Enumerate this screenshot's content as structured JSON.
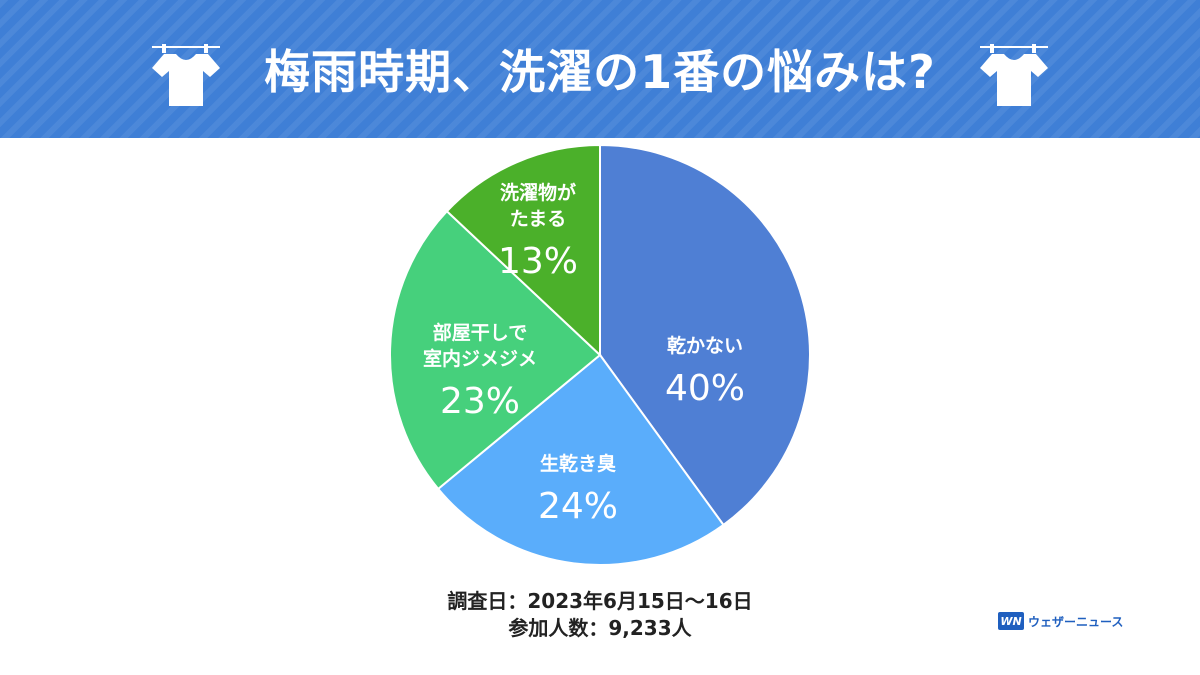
{
  "header": {
    "title": "梅雨時期、洗濯の1番の悩みは?"
  },
  "chart_data": {
    "type": "pie",
    "title": "梅雨時期、洗濯の1番の悩みは?",
    "slices": [
      {
        "lines": [
          "乾かない"
        ],
        "value": 40,
        "label": "40%",
        "color": "#4f7fd4"
      },
      {
        "lines": [
          "生乾き臭"
        ],
        "value": 24,
        "label": "24%",
        "color": "#5aadfb"
      },
      {
        "lines": [
          "部屋干しで",
          "室内ジメジメ"
        ],
        "value": 23,
        "label": "23%",
        "color": "#46d07c"
      },
      {
        "lines": [
          "洗濯物が",
          "たまる"
        ],
        "value": 13,
        "label": "13%",
        "color": "#4bb02a"
      }
    ]
  },
  "footer": {
    "survey_date": "調査日：2023年6月15日～16日",
    "participants": "参加人数：9,233人"
  },
  "brand": {
    "logo": "WN",
    "name": "ウェザーニュース"
  },
  "icons": [
    "tshirt-icon",
    "tshirt-icon"
  ]
}
